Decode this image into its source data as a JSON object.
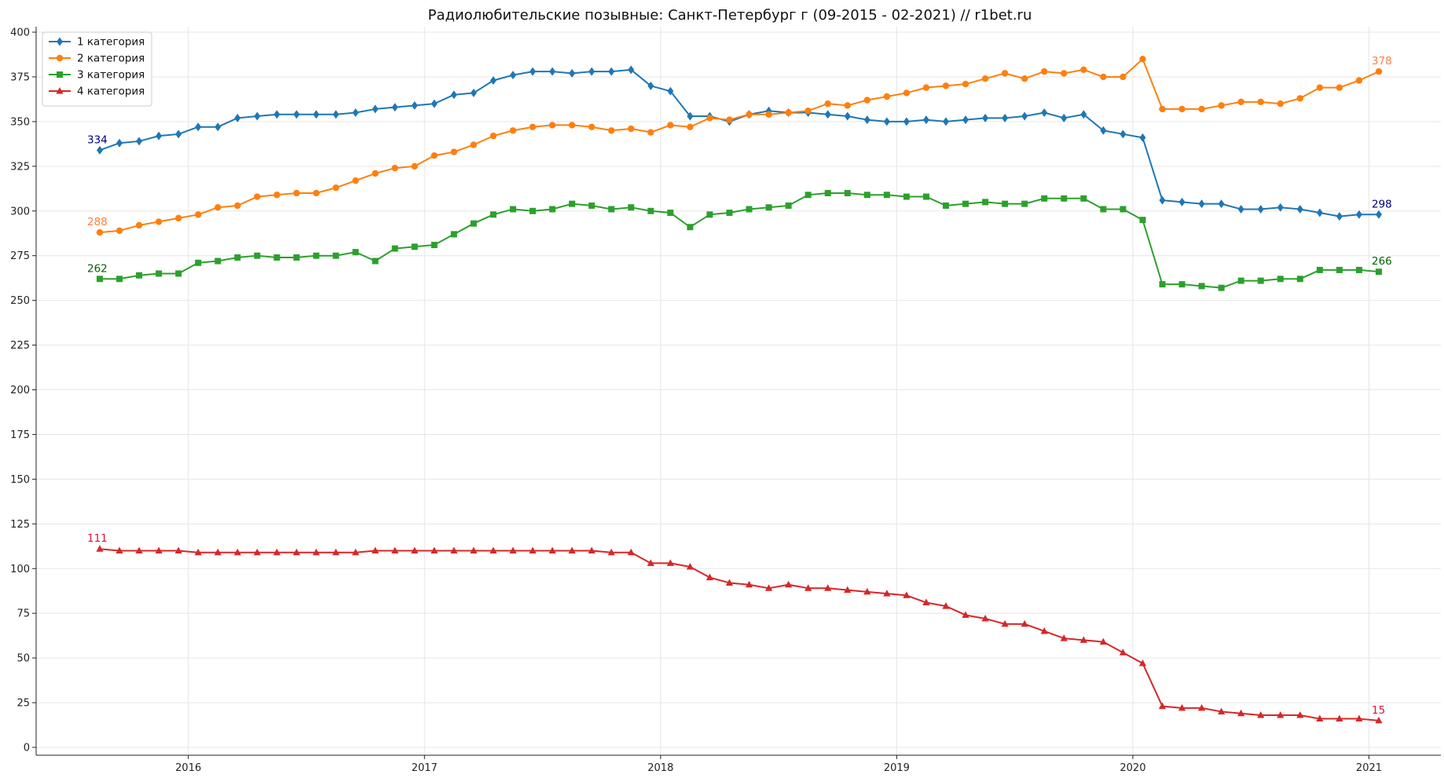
{
  "chart_data": {
    "type": "line",
    "title": "Радиолюбительские позывные: Санкт-Петербург г (09-2015 - 02-2021) // r1bet.ru",
    "xlabel": "",
    "ylabel": "",
    "x_start": "2015-09",
    "x_end": "2021-02",
    "x_ticks": [
      "2016",
      "2017",
      "2018",
      "2019",
      "2020",
      "2021"
    ],
    "ylim": [
      0,
      400
    ],
    "y_ticks": [
      0,
      25,
      50,
      75,
      100,
      125,
      150,
      175,
      200,
      225,
      250,
      275,
      300,
      325,
      350,
      375,
      400
    ],
    "grid": true,
    "legend_position": "top-left",
    "series": [
      {
        "name": "1 категория",
        "color": "#1f77b4",
        "marker": "diamond",
        "first_label": "334",
        "last_label": "298",
        "label_color": "#000080",
        "values": [
          334,
          338,
          339,
          342,
          343,
          347,
          347,
          352,
          353,
          354,
          354,
          354,
          354,
          355,
          357,
          358,
          359,
          360,
          365,
          366,
          373,
          376,
          378,
          378,
          377,
          378,
          378,
          379,
          370,
          367,
          353,
          353,
          350,
          354,
          356,
          355,
          355,
          354,
          353,
          351,
          350,
          350,
          351,
          350,
          351,
          352,
          352,
          353,
          355,
          352,
          354,
          345,
          343,
          341,
          306,
          305,
          304,
          304,
          301,
          301,
          302,
          301,
          299,
          297,
          298,
          298
        ]
      },
      {
        "name": "2 категория",
        "color": "#ff7f0e",
        "marker": "circle",
        "first_label": "288",
        "last_label": "378",
        "label_color": "#ff7f3f",
        "values": [
          288,
          289,
          292,
          294,
          296,
          298,
          302,
          303,
          308,
          309,
          310,
          310,
          313,
          317,
          321,
          324,
          325,
          331,
          333,
          337,
          342,
          345,
          347,
          348,
          348,
          347,
          345,
          346,
          344,
          348,
          347,
          352,
          351,
          354,
          354,
          355,
          356,
          360,
          359,
          362,
          364,
          366,
          369,
          370,
          371,
          374,
          377,
          374,
          378,
          377,
          379,
          375,
          375,
          385,
          357,
          357,
          357,
          359,
          361,
          361,
          360,
          363,
          369,
          369,
          373,
          378
        ]
      },
      {
        "name": "3 категория",
        "color": "#2ca02c",
        "marker": "square",
        "first_label": "262",
        "last_label": "266",
        "label_color": "#006400",
        "values": [
          262,
          262,
          264,
          265,
          265,
          271,
          272,
          274,
          275,
          274,
          274,
          275,
          275,
          277,
          272,
          279,
          280,
          281,
          287,
          293,
          298,
          301,
          300,
          301,
          304,
          303,
          301,
          302,
          300,
          299,
          291,
          298,
          299,
          301,
          302,
          303,
          309,
          310,
          310,
          309,
          309,
          308,
          308,
          303,
          304,
          305,
          304,
          304,
          307,
          307,
          307,
          301,
          301,
          295,
          259,
          259,
          258,
          257,
          261,
          261,
          262,
          262,
          267,
          267,
          267,
          266
        ]
      },
      {
        "name": "4 категория",
        "color": "#d62728",
        "marker": "triangle",
        "first_label": "111",
        "last_label": "15",
        "label_color": "#dc143c",
        "values": [
          111,
          110,
          110,
          110,
          110,
          109,
          109,
          109,
          109,
          109,
          109,
          109,
          109,
          109,
          110,
          110,
          110,
          110,
          110,
          110,
          110,
          110,
          110,
          110,
          110,
          110,
          109,
          109,
          103,
          103,
          101,
          95,
          92,
          91,
          89,
          91,
          89,
          89,
          88,
          87,
          86,
          85,
          81,
          79,
          74,
          72,
          69,
          69,
          65,
          61,
          60,
          59,
          53,
          47,
          23,
          22,
          22,
          20,
          19,
          18,
          18,
          18,
          16,
          16,
          16,
          15
        ]
      }
    ]
  }
}
